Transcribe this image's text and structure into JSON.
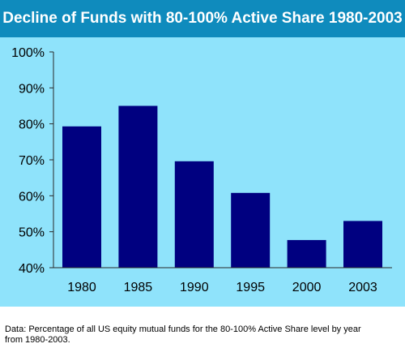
{
  "title": "Decline of Funds with 80-100% Active Share 1980-2003",
  "note": "Data:  Percentage of all US equity mutual funds for the 80-100% Active Share level by year\nfrom 1980-2003.",
  "colors": {
    "title_bg": "#0f8bbd",
    "title_text": "#ffffff",
    "plot_bg": "#8fe3fb",
    "bar": "#000080",
    "axis": "#2a2a2a"
  },
  "chart_data": {
    "type": "bar",
    "title": "Decline of Funds with 80-100% Active Share 1980-2003",
    "categories": [
      "1980",
      "1985",
      "1990",
      "1995",
      "2000",
      "2003"
    ],
    "values": [
      79.3,
      85,
      69.6,
      60.8,
      47.7,
      53
    ],
    "ylim": [
      40,
      100
    ],
    "yticks": [
      "40%",
      "50%",
      "60%",
      "70%",
      "80%",
      "90%",
      "100%"
    ],
    "ytick_values": [
      40,
      50,
      60,
      70,
      80,
      90,
      100
    ],
    "grid": false,
    "legend": "none",
    "xlabel": "",
    "ylabel": ""
  }
}
